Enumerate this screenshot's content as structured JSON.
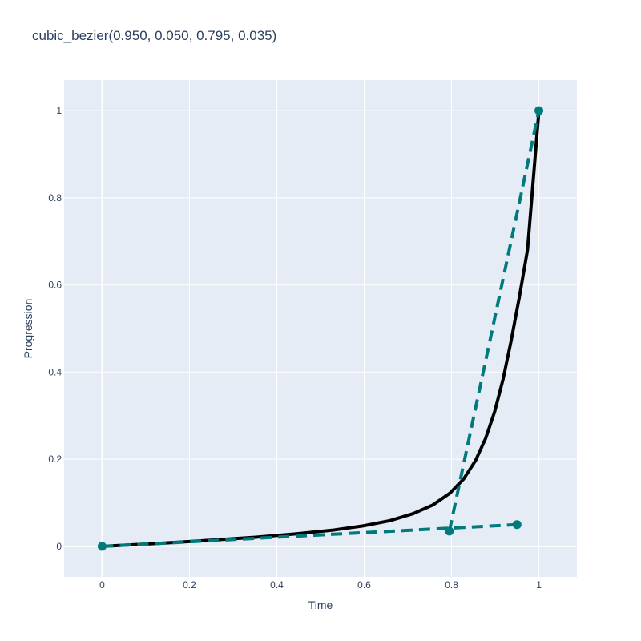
{
  "chart_data": {
    "type": "line",
    "title": "cubic_bezier(0.950, 0.050, 0.795, 0.035)",
    "xlabel": "Time",
    "ylabel": "Progression",
    "xlim": [
      -0.087,
      1.087
    ],
    "ylim": [
      -0.07,
      1.07
    ],
    "x_ticks": [
      0,
      0.2,
      0.4,
      0.6,
      0.8,
      1
    ],
    "x_tick_labels": [
      "0",
      "0.2",
      "0.4",
      "0.6",
      "0.8",
      "1"
    ],
    "y_ticks": [
      0,
      0.2,
      0.4,
      0.6,
      0.8,
      1
    ],
    "y_tick_labels": [
      "0",
      "0.2",
      "0.4",
      "0.6",
      "0.8",
      "1"
    ],
    "grid": true,
    "legend": false,
    "plot_background": "#e5ecf6",
    "series": [
      {
        "type": "curve",
        "color": "#000000",
        "line_style": "solid",
        "bezier": [
          0.95,
          0.05,
          0.795,
          0.035
        ],
        "x": [
          0,
          0.131,
          0.248,
          0.352,
          0.445,
          0.526,
          0.597,
          0.659,
          0.712,
          0.757,
          0.796,
          0.828,
          0.855,
          0.878,
          0.899,
          0.918,
          0.936,
          0.955,
          0.974,
          1.0
        ],
        "y": [
          0,
          0.007,
          0.014,
          0.021,
          0.029,
          0.037,
          0.047,
          0.059,
          0.075,
          0.095,
          0.122,
          0.155,
          0.197,
          0.248,
          0.31,
          0.384,
          0.47,
          0.57,
          0.681,
          1.0
        ]
      },
      {
        "type": "control-polygon",
        "color": "#007a7a",
        "line_style": "dash",
        "markers": true,
        "x": [
          0,
          0.95,
          0.795,
          1
        ],
        "y": [
          0,
          0.05,
          0.035,
          1
        ]
      }
    ]
  }
}
